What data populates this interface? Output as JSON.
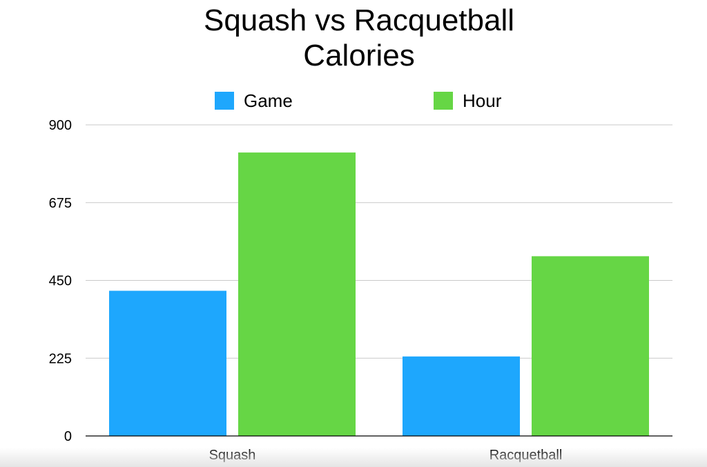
{
  "chart_data": {
    "type": "bar",
    "title_lines": [
      "Squash vs Racquetball",
      "Calories"
    ],
    "categories": [
      "Squash",
      "Racquetball"
    ],
    "series": [
      {
        "name": "Game",
        "values": [
          420,
          230
        ],
        "color": "#1ea7fd"
      },
      {
        "name": "Hour",
        "values": [
          820,
          520
        ],
        "color": "#66d645"
      }
    ],
    "yticks": [
      "0",
      "225",
      "450",
      "675",
      "900"
    ],
    "ylim": [
      0,
      900
    ],
    "grid": true,
    "legend_position": "top"
  }
}
